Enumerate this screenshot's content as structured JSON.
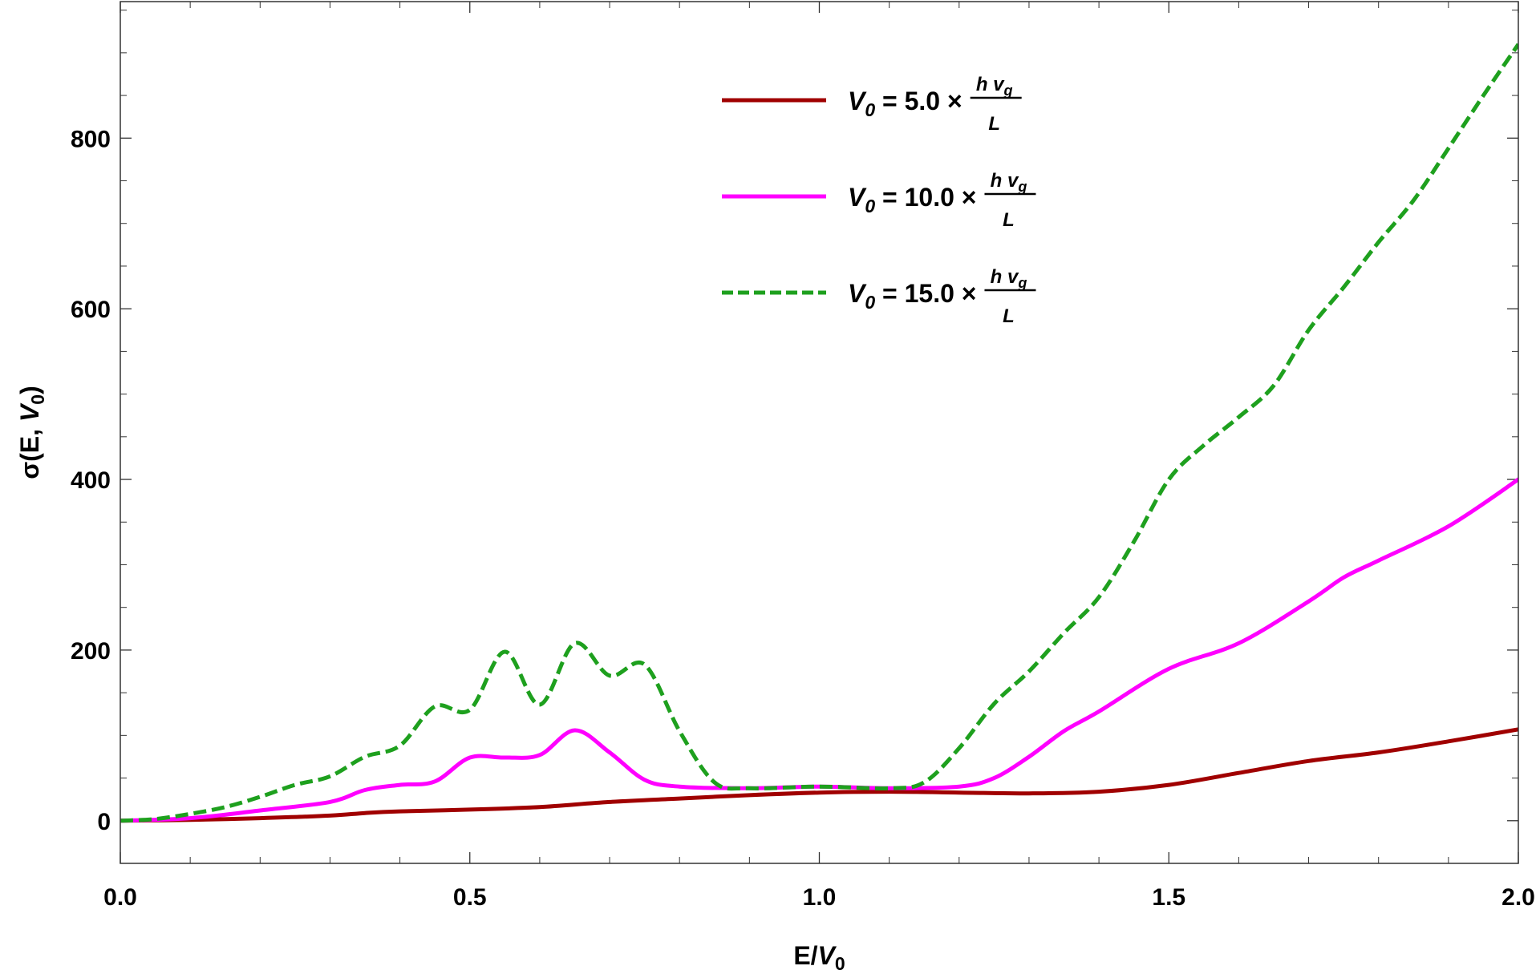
{
  "chart_data": {
    "type": "line",
    "xlabel": "E/V0",
    "ylabel": "σ(E, V0)",
    "xlim": [
      0,
      2
    ],
    "ylim": [
      -50,
      960
    ],
    "x_ticks": [
      0.0,
      0.5,
      1.0,
      1.5,
      2.0
    ],
    "x_tick_labels": [
      "0.0",
      "0.5",
      "1.0",
      "1.5",
      "2.0"
    ],
    "y_ticks": [
      0,
      200,
      400,
      600,
      800
    ],
    "y_tick_labels": [
      "0",
      "200",
      "400",
      "600",
      "800"
    ],
    "grid": false,
    "legend_position": "top-center",
    "legend_formula": {
      "prefix": "V",
      "subscript": "0",
      "times": "×",
      "numerator": "h v",
      "numerator_subscript": "g",
      "denominator": "L"
    },
    "series": [
      {
        "name": "V0 = 5.0 × h vg / L",
        "value_label": "= 5.0",
        "color": "#a00000",
        "dash": "solid",
        "x": [
          0.0,
          0.1,
          0.2,
          0.3,
          0.35,
          0.4,
          0.5,
          0.6,
          0.7,
          0.8,
          0.9,
          1.0,
          1.1,
          1.2,
          1.3,
          1.4,
          1.5,
          1.6,
          1.7,
          1.8,
          1.9,
          2.0
        ],
        "y": [
          0,
          1,
          3,
          6,
          9,
          11,
          13,
          16,
          22,
          26,
          30,
          33,
          34,
          33,
          32,
          34,
          42,
          56,
          70,
          80,
          93,
          107
        ]
      },
      {
        "name": "V0 = 10.0 × h vg / L",
        "value_label": "= 10.0",
        "color": "#ff00ff",
        "dash": "solid",
        "x": [
          0.0,
          0.1,
          0.2,
          0.3,
          0.35,
          0.4,
          0.45,
          0.5,
          0.55,
          0.6,
          0.65,
          0.7,
          0.75,
          0.8,
          0.9,
          1.0,
          1.1,
          1.2,
          1.25,
          1.3,
          1.35,
          1.4,
          1.5,
          1.6,
          1.7,
          1.75,
          1.8,
          1.9,
          2.0
        ],
        "y": [
          0,
          3,
          12,
          22,
          36,
          42,
          46,
          74,
          74,
          77,
          106,
          80,
          48,
          40,
          38,
          40,
          38,
          40,
          50,
          75,
          105,
          128,
          178,
          208,
          257,
          285,
          305,
          345,
          400
        ]
      },
      {
        "name": "V0 = 15.0 × h vg / L",
        "value_label": "= 15.0",
        "color": "#1ea01e",
        "dash": "dashed",
        "x": [
          0.0,
          0.05,
          0.1,
          0.15,
          0.2,
          0.25,
          0.3,
          0.35,
          0.4,
          0.45,
          0.5,
          0.55,
          0.6,
          0.65,
          0.7,
          0.75,
          0.8,
          0.85,
          0.9,
          1.0,
          1.1,
          1.15,
          1.2,
          1.25,
          1.3,
          1.35,
          1.4,
          1.45,
          1.5,
          1.55,
          1.6,
          1.65,
          1.7,
          1.75,
          1.8,
          1.85,
          1.9,
          1.95,
          2.0
        ],
        "y": [
          0,
          2,
          8,
          16,
          28,
          42,
          52,
          75,
          88,
          134,
          130,
          198,
          136,
          208,
          170,
          183,
          105,
          45,
          38,
          40,
          38,
          45,
          85,
          137,
          175,
          220,
          262,
          327,
          400,
          440,
          473,
          510,
          575,
          625,
          678,
          727,
          788,
          850,
          910
        ]
      }
    ]
  }
}
